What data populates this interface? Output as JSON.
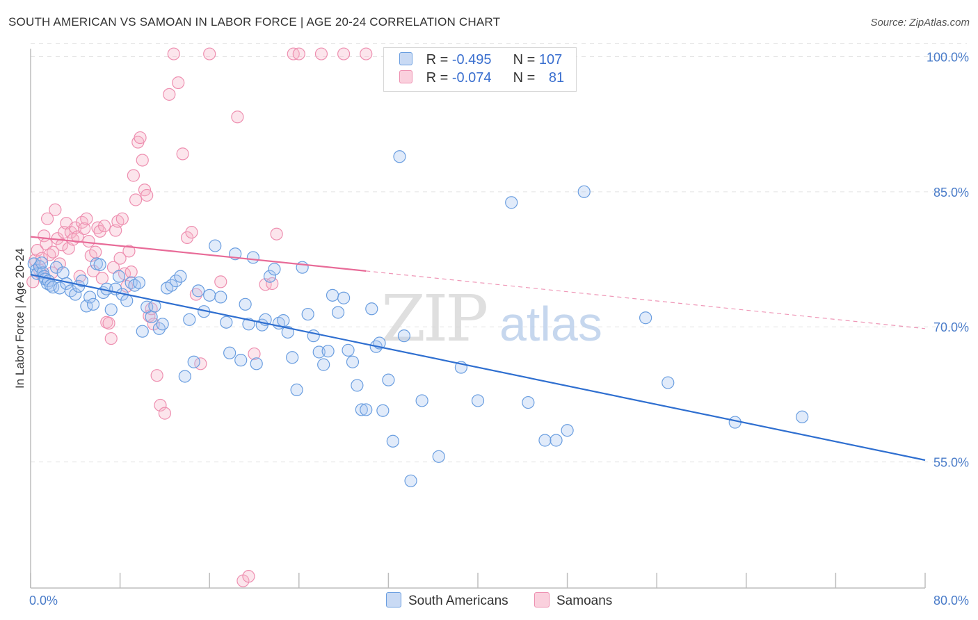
{
  "header": {
    "title": "SOUTH AMERICAN VS SAMOAN IN LABOR FORCE | AGE 20-24 CORRELATION CHART",
    "source": "Source: ZipAtlas.com"
  },
  "watermark": {
    "zip": "ZIP",
    "atlas": "atlas"
  },
  "legend": {
    "rows": [
      {
        "r_label": "R = ",
        "r_value": "-0.495",
        "n_label": "N = ",
        "n_value": "107",
        "color": "#a9c6f0"
      },
      {
        "r_label": "R = ",
        "r_value": "-0.074",
        "n_label": "N = ",
        "n_value": "81",
        "color": "#f6b4c8"
      }
    ]
  },
  "bottom_legend": [
    {
      "label": "South Americans",
      "color": "#a9c6f0"
    },
    {
      "label": "Samoans",
      "color": "#f6b4c8"
    }
  ],
  "chart_data": {
    "type": "scatter",
    "title": "SOUTH AMERICAN VS SAMOAN IN LABOR FORCE | AGE 20-24 CORRELATION CHART",
    "xlabel": "",
    "ylabel": "In Labor Force | Age 20-24",
    "xlim": [
      0,
      80
    ],
    "ylim": [
      41,
      101.5
    ],
    "x_tick_labels": [
      "0.0%",
      "80.0%"
    ],
    "y_ticks": [
      55,
      70,
      85,
      100
    ],
    "y_tick_labels": [
      "55.0%",
      "70.0%",
      "85.0%",
      "100.0%"
    ],
    "grid": true,
    "colors": {
      "south_americans": "#6a9ee0",
      "samoans": "#ee8fb0",
      "sa_line": "#2f6fd0",
      "sm_line": "#e86b98"
    },
    "series": [
      {
        "name": "South Americans",
        "trend": {
          "x": [
            0,
            80
          ],
          "y": [
            75.8,
            55.2
          ]
        },
        "points": [
          [
            0.3,
            77.0
          ],
          [
            0.5,
            76.3
          ],
          [
            0.6,
            75.9
          ],
          [
            0.8,
            76.7
          ],
          [
            1.0,
            77.1
          ],
          [
            1.1,
            76.0
          ],
          [
            1.2,
            75.6
          ],
          [
            1.3,
            75.3
          ],
          [
            1.5,
            74.8
          ],
          [
            1.6,
            75.1
          ],
          [
            1.8,
            74.6
          ],
          [
            2.0,
            74.4
          ],
          [
            2.3,
            76.6
          ],
          [
            2.6,
            74.3
          ],
          [
            2.9,
            76.0
          ],
          [
            3.2,
            74.8
          ],
          [
            3.6,
            74.0
          ],
          [
            4.0,
            73.6
          ],
          [
            4.3,
            74.5
          ],
          [
            4.6,
            75.1
          ],
          [
            5.0,
            72.3
          ],
          [
            5.3,
            73.3
          ],
          [
            5.6,
            72.5
          ],
          [
            5.9,
            77.0
          ],
          [
            6.2,
            76.9
          ],
          [
            6.5,
            73.8
          ],
          [
            6.8,
            74.2
          ],
          [
            7.2,
            71.9
          ],
          [
            7.6,
            74.2
          ],
          [
            7.9,
            75.6
          ],
          [
            8.2,
            73.6
          ],
          [
            8.6,
            72.9
          ],
          [
            9.0,
            74.9
          ],
          [
            9.3,
            74.6
          ],
          [
            9.7,
            74.9
          ],
          [
            10.0,
            69.5
          ],
          [
            10.4,
            72.2
          ],
          [
            10.8,
            71.1
          ],
          [
            11.1,
            72.3
          ],
          [
            11.5,
            69.8
          ],
          [
            11.8,
            70.3
          ],
          [
            12.2,
            74.3
          ],
          [
            12.6,
            74.6
          ],
          [
            13.0,
            75.1
          ],
          [
            13.4,
            75.6
          ],
          [
            13.8,
            64.5
          ],
          [
            14.2,
            70.8
          ],
          [
            14.6,
            66.1
          ],
          [
            15.0,
            74.0
          ],
          [
            15.5,
            71.7
          ],
          [
            16.0,
            73.5
          ],
          [
            16.5,
            79.0
          ],
          [
            17.0,
            73.3
          ],
          [
            17.5,
            70.5
          ],
          [
            17.8,
            67.1
          ],
          [
            18.3,
            78.1
          ],
          [
            18.8,
            66.3
          ],
          [
            19.2,
            72.5
          ],
          [
            19.5,
            70.3
          ],
          [
            19.9,
            77.7
          ],
          [
            20.2,
            65.9
          ],
          [
            20.7,
            70.2
          ],
          [
            21.0,
            70.8
          ],
          [
            21.4,
            75.6
          ],
          [
            21.8,
            76.4
          ],
          [
            22.2,
            70.4
          ],
          [
            22.6,
            70.7
          ],
          [
            23.0,
            69.4
          ],
          [
            23.4,
            66.6
          ],
          [
            23.8,
            63.0
          ],
          [
            24.3,
            76.6
          ],
          [
            24.8,
            71.4
          ],
          [
            25.3,
            69.0
          ],
          [
            25.8,
            67.2
          ],
          [
            26.2,
            65.8
          ],
          [
            26.6,
            67.3
          ],
          [
            27.0,
            73.5
          ],
          [
            27.5,
            71.6
          ],
          [
            28.0,
            73.2
          ],
          [
            28.4,
            67.4
          ],
          [
            28.8,
            66.1
          ],
          [
            29.2,
            63.5
          ],
          [
            29.6,
            60.8
          ],
          [
            30.0,
            60.8
          ],
          [
            30.5,
            72.0
          ],
          [
            30.9,
            67.8
          ],
          [
            31.2,
            68.2
          ],
          [
            31.5,
            60.7
          ],
          [
            32.0,
            64.1
          ],
          [
            32.4,
            57.3
          ],
          [
            33.0,
            88.9
          ],
          [
            33.4,
            69.0
          ],
          [
            34.0,
            52.9
          ],
          [
            35.0,
            61.8
          ],
          [
            36.5,
            55.6
          ],
          [
            38.5,
            65.5
          ],
          [
            40.0,
            61.8
          ],
          [
            43.0,
            83.8
          ],
          [
            44.5,
            61.6
          ],
          [
            46.0,
            57.4
          ],
          [
            47.0,
            57.4
          ],
          [
            48.0,
            58.5
          ],
          [
            49.5,
            85.0
          ],
          [
            55.0,
            71.0
          ],
          [
            57.0,
            63.8
          ],
          [
            63.0,
            59.4
          ],
          [
            69.0,
            60.0
          ]
        ]
      },
      {
        "name": "Samoans",
        "trend": {
          "x": [
            0,
            30
          ],
          "y": [
            80.0,
            76.2
          ],
          "dashed_to": {
            "x": 80,
            "y": 69.8
          }
        },
        "points": [
          [
            0.2,
            75.0
          ],
          [
            0.4,
            77.4
          ],
          [
            0.6,
            78.5
          ],
          [
            0.8,
            76.3
          ],
          [
            1.0,
            77.6
          ],
          [
            1.2,
            80.1
          ],
          [
            1.4,
            79.2
          ],
          [
            1.5,
            82.0
          ],
          [
            1.7,
            78.0
          ],
          [
            1.9,
            76.0
          ],
          [
            2.0,
            78.3
          ],
          [
            2.2,
            83.0
          ],
          [
            2.4,
            79.8
          ],
          [
            2.6,
            77.0
          ],
          [
            2.8,
            79.1
          ],
          [
            3.0,
            80.5
          ],
          [
            3.2,
            81.5
          ],
          [
            3.4,
            78.7
          ],
          [
            3.6,
            80.5
          ],
          [
            3.8,
            79.7
          ],
          [
            4.0,
            81.0
          ],
          [
            4.2,
            80.0
          ],
          [
            4.4,
            75.6
          ],
          [
            4.6,
            81.6
          ],
          [
            4.8,
            80.9
          ],
          [
            5.0,
            82.0
          ],
          [
            5.2,
            79.5
          ],
          [
            5.4,
            77.9
          ],
          [
            5.6,
            76.2
          ],
          [
            5.8,
            78.3
          ],
          [
            6.0,
            81.0
          ],
          [
            6.2,
            80.6
          ],
          [
            6.4,
            75.4
          ],
          [
            6.6,
            81.2
          ],
          [
            6.8,
            70.5
          ],
          [
            7.0,
            70.4
          ],
          [
            7.2,
            68.7
          ],
          [
            7.4,
            76.6
          ],
          [
            7.6,
            80.7
          ],
          [
            7.8,
            81.7
          ],
          [
            8.0,
            77.6
          ],
          [
            8.2,
            82.0
          ],
          [
            8.4,
            75.9
          ],
          [
            8.6,
            74.5
          ],
          [
            8.8,
            78.4
          ],
          [
            9.0,
            76.1
          ],
          [
            9.2,
            86.8
          ],
          [
            9.4,
            84.1
          ],
          [
            9.6,
            90.5
          ],
          [
            9.8,
            91.0
          ],
          [
            10.0,
            88.5
          ],
          [
            10.2,
            85.2
          ],
          [
            10.4,
            84.6
          ],
          [
            10.6,
            71.2
          ],
          [
            10.8,
            72.0
          ],
          [
            11.0,
            70.3
          ],
          [
            11.3,
            64.6
          ],
          [
            11.6,
            61.3
          ],
          [
            12.0,
            60.4
          ],
          [
            12.4,
            95.8
          ],
          [
            12.8,
            100.3
          ],
          [
            13.2,
            97.1
          ],
          [
            13.6,
            89.2
          ],
          [
            14.0,
            79.9
          ],
          [
            14.4,
            80.5
          ],
          [
            14.8,
            73.6
          ],
          [
            15.2,
            65.9
          ],
          [
            16.0,
            100.3
          ],
          [
            17.0,
            75.0
          ],
          [
            18.5,
            93.3
          ],
          [
            19.0,
            41.8
          ],
          [
            19.5,
            42.3
          ],
          [
            20.0,
            67.0
          ],
          [
            21.0,
            74.7
          ],
          [
            21.6,
            74.8
          ],
          [
            22.0,
            80.3
          ],
          [
            23.5,
            100.3
          ],
          [
            24.0,
            100.3
          ],
          [
            26.0,
            100.3
          ],
          [
            28.0,
            100.3
          ],
          [
            30.0,
            100.3
          ]
        ]
      }
    ]
  }
}
